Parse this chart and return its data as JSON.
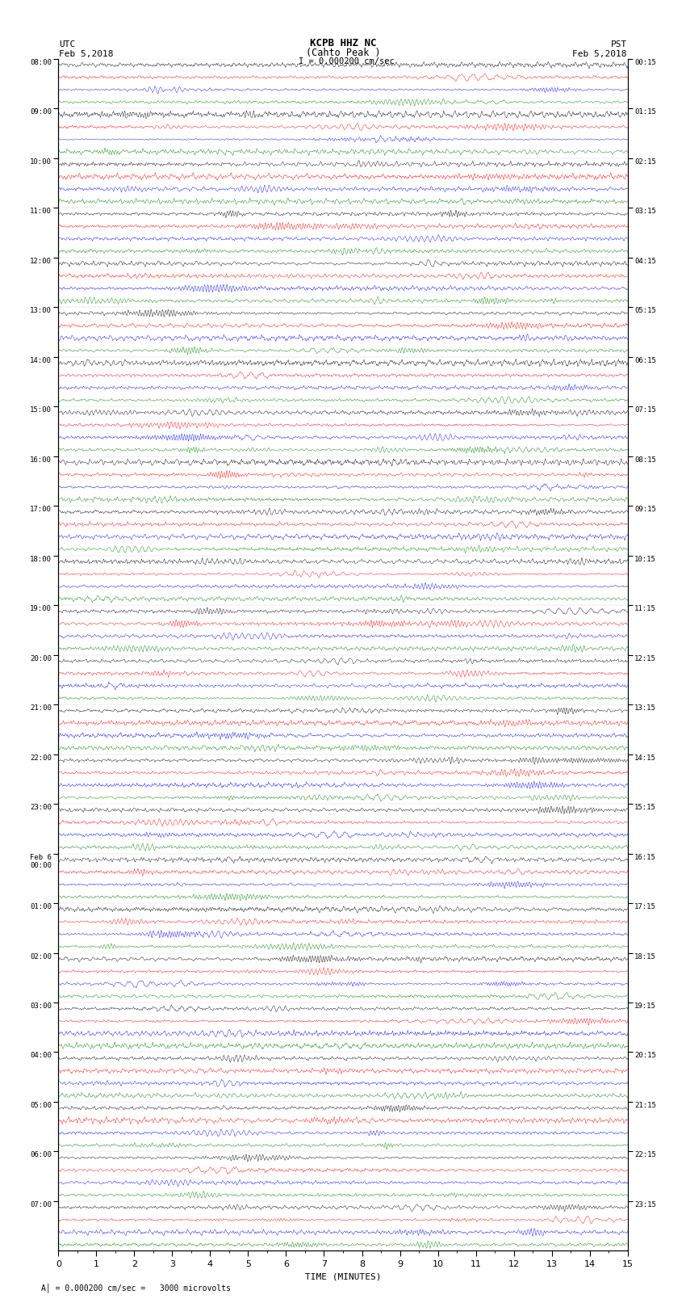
{
  "title_line1": "KCPB HHZ NC",
  "title_line2": "(Cahto Peak )",
  "scale_text": "I = 0.000200 cm/sec",
  "footer_text": "A│ = 0.000200 cm/sec =   3000 microvolts",
  "utc_label": "UTC",
  "utc_date": "Feb 5,2018",
  "pst_label": "PST",
  "pst_date": "Feb 5,2018",
  "xlabel": "TIME (MINUTES)",
  "left_times_utc": [
    "08:00",
    "09:00",
    "10:00",
    "11:00",
    "12:00",
    "13:00",
    "14:00",
    "15:00",
    "16:00",
    "17:00",
    "18:00",
    "19:00",
    "20:00",
    "21:00",
    "22:00",
    "23:00",
    "Feb 6\n00:00",
    "01:00",
    "02:00",
    "03:00",
    "04:00",
    "05:00",
    "06:00",
    "07:00"
  ],
  "right_times_pst": [
    "00:15",
    "01:15",
    "02:15",
    "03:15",
    "04:15",
    "05:15",
    "06:15",
    "07:15",
    "08:15",
    "09:15",
    "10:15",
    "11:15",
    "12:15",
    "13:15",
    "14:15",
    "15:15",
    "16:15",
    "17:15",
    "18:15",
    "19:15",
    "20:15",
    "21:15",
    "22:15",
    "23:15"
  ],
  "n_hours": 24,
  "sub_traces_per_hour": 4,
  "minutes_per_trace": 15,
  "colors_cycle": [
    "black",
    "red",
    "blue",
    "green"
  ],
  "background_color": "white",
  "fig_width": 8.5,
  "fig_height": 16.13,
  "dpi": 100,
  "plot_points": 15000,
  "base_amplitude": 0.09,
  "lw": 0.3
}
